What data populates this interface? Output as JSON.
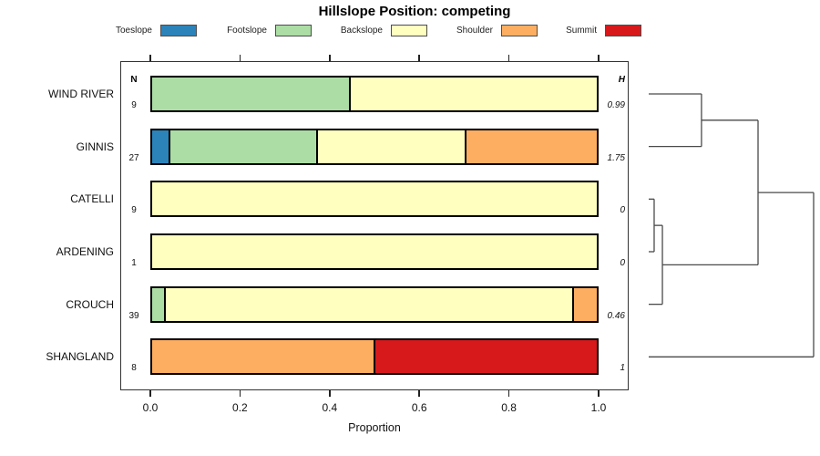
{
  "title": "Hillslope Position: competing",
  "columns": {
    "n_header": "N",
    "h_header": "H"
  },
  "x_axis": {
    "label": "Proportion",
    "tick_labels": [
      "0.0",
      "0.2",
      "0.4",
      "0.6",
      "0.8",
      "1.0"
    ],
    "tick_values": [
      0,
      0.2,
      0.4,
      0.6,
      0.8,
      1.0
    ],
    "range": [
      0,
      1
    ]
  },
  "legend": {
    "items": [
      {
        "label": "Toeslope",
        "color": "#2B83BA"
      },
      {
        "label": "Footslope",
        "color": "#ABDDA4"
      },
      {
        "label": "Backslope",
        "color": "#FFFFBF"
      },
      {
        "label": "Shoulder",
        "color": "#FDAE61"
      },
      {
        "label": "Summit",
        "color": "#D7191C"
      }
    ]
  },
  "chart_data": {
    "type": "bar",
    "stacked": true,
    "orientation": "horizontal",
    "title": "Hillslope Position: competing",
    "xlabel": "Proportion",
    "xlim": [
      0,
      1
    ],
    "grid": false,
    "legend_position": "top",
    "categories": [
      "WIND RIVER",
      "GINNIS",
      "CATELLI",
      "ARDENING",
      "CROUCH",
      "SHANGLAND"
    ],
    "n_values": [
      "9",
      "27",
      "9",
      "1",
      "39",
      "8"
    ],
    "h_values": [
      "0.99",
      "1.75",
      "0",
      "0",
      "0.46",
      "1"
    ],
    "series": [
      {
        "name": "Toeslope",
        "color": "#2B83BA",
        "values": [
          0,
          0.037,
          0,
          0,
          0,
          0
        ]
      },
      {
        "name": "Footslope",
        "color": "#ABDDA4",
        "values": [
          0.444,
          0.333,
          0,
          0,
          0.026,
          0
        ]
      },
      {
        "name": "Backslope",
        "color": "#FFFFBF",
        "values": [
          0.556,
          0.333,
          1,
          1,
          0.923,
          0
        ]
      },
      {
        "name": "Shoulder",
        "color": "#FDAE61",
        "values": [
          0,
          0.296,
          0,
          0,
          0.051,
          0.5
        ]
      },
      {
        "name": "Summit",
        "color": "#D7191C",
        "values": [
          0,
          0,
          0,
          0,
          0,
          0.5
        ]
      }
    ],
    "dendrogram": {
      "leaves": [
        "WIND RIVER",
        "GINNIS",
        "CATELLI",
        "ARDENING",
        "CROUCH",
        "SHANGLAND"
      ],
      "merges": [
        {
          "id": "m1",
          "children": [
            "WIND RIVER",
            "GINNIS"
          ],
          "height": 0.32
        },
        {
          "id": "m2",
          "children": [
            "CATELLI",
            "ARDENING"
          ],
          "height": 0.033
        },
        {
          "id": "m3",
          "children": [
            "m2",
            "CROUCH"
          ],
          "height": 0.083
        },
        {
          "id": "m4",
          "children": [
            "m1",
            "m3"
          ],
          "height": 0.663
        },
        {
          "id": "m5",
          "children": [
            "m4",
            "SHANGLAND"
          ],
          "height": 1.0
        }
      ]
    }
  }
}
